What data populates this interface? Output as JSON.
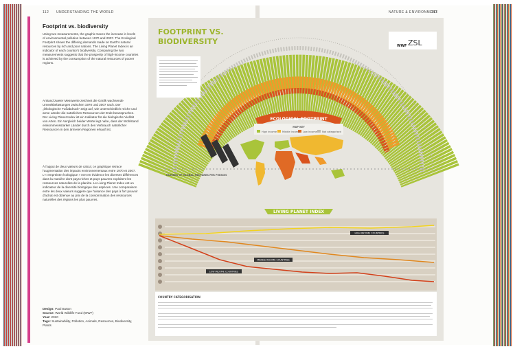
{
  "left_page": {
    "page_number": "112",
    "running_head": "UNDERSTANDING THE WORLD",
    "title": "Footprint vs. biodiversity",
    "paragraphs": [
      "Using two measurements, the graphic traces the increase in levels of environmental pollution between 1970 and 2007. The Ecological Footprint shows the differing demands made on Earth's natural resources by rich and poor nations. The Living Planet Index is an indicator of each country's biodiversity. Comparing the two measurements suggests that the prosperity of high-income countries is achieved by the consumption of the natural resources of poorer regions.",
      "Anhand zweier Messwerte zeichnet die Grafik wachsende Umweltbelastungen zwischen 1970 und 2007 nach. Der „Ökologische Fußabdruck“ zeigt auf, wie unterschiedlich reiche und arme Länder die natürlichen Ressourcen der Erde beanspruchen. Der Living Planet Index ist ein Indikator für die biologische Vielfalt von Arten. Ein Vergleich beider Werte legt nahe, dass der Wohlstand einkommensstarker Länder durch den Verbrauch natürlicher Ressourcen in den ärmeren Regionen erkauft ist.",
      "À l'appui de deux valeurs de calcul, ce graphique retrace l'augmentation des impacts environnementaux entre 1970 et 2007. L'« empreinte écologique » met en évidence les diverses différences dans la manière dont pays riches et pays pauvres exploitent les ressources naturelles de la planète. Le Living Planet Index est un indicateur de la diversité biologique des espèces. Une comparaison entre les deux valeurs suggère que l'aisance des pays à fort pouvoir d'achat est obtenue au prix de la consommation des ressources naturelles des régions les plus pauvres."
    ],
    "credits": [
      {
        "label": "Design:",
        "text": "Paul Button"
      },
      {
        "label": "Source:",
        "text": "World Wildlife Fund (WWF)"
      },
      {
        "label": "Year:",
        "text": "2010"
      },
      {
        "label": "Tags:",
        "text": "Sustainability, Pollution, Animals, Resources, Biodiversity, Plants"
      }
    ]
  },
  "right_page": {
    "running_head": "NATURE & ENVIRONMENT",
    "page_number": "113"
  },
  "infographic": {
    "title_line1": "FOOTPRINT VS.",
    "title_line2": "BIODIVERSITY",
    "footprint_heading": "ECOLOGICAL FOOTPRINT",
    "map_key": {
      "title": "MAP KEY",
      "items": [
        "High income",
        "Middle income",
        "Low income",
        "Not categorised"
      ]
    },
    "axis_label": "NUMBER OF GLOBAL HECTARES PER PERSON",
    "lpi_heading": "LIVING PLANET INDEX",
    "line_labels": [
      "HIGH INCOME COUNTRIES",
      "MIDDLE INCOME COUNTRIES",
      "LOW INCOME COUNTRIES"
    ],
    "table_title": "COUNTRY CATEGORISATION",
    "logos": [
      "WWF",
      "ZSL"
    ]
  }
}
